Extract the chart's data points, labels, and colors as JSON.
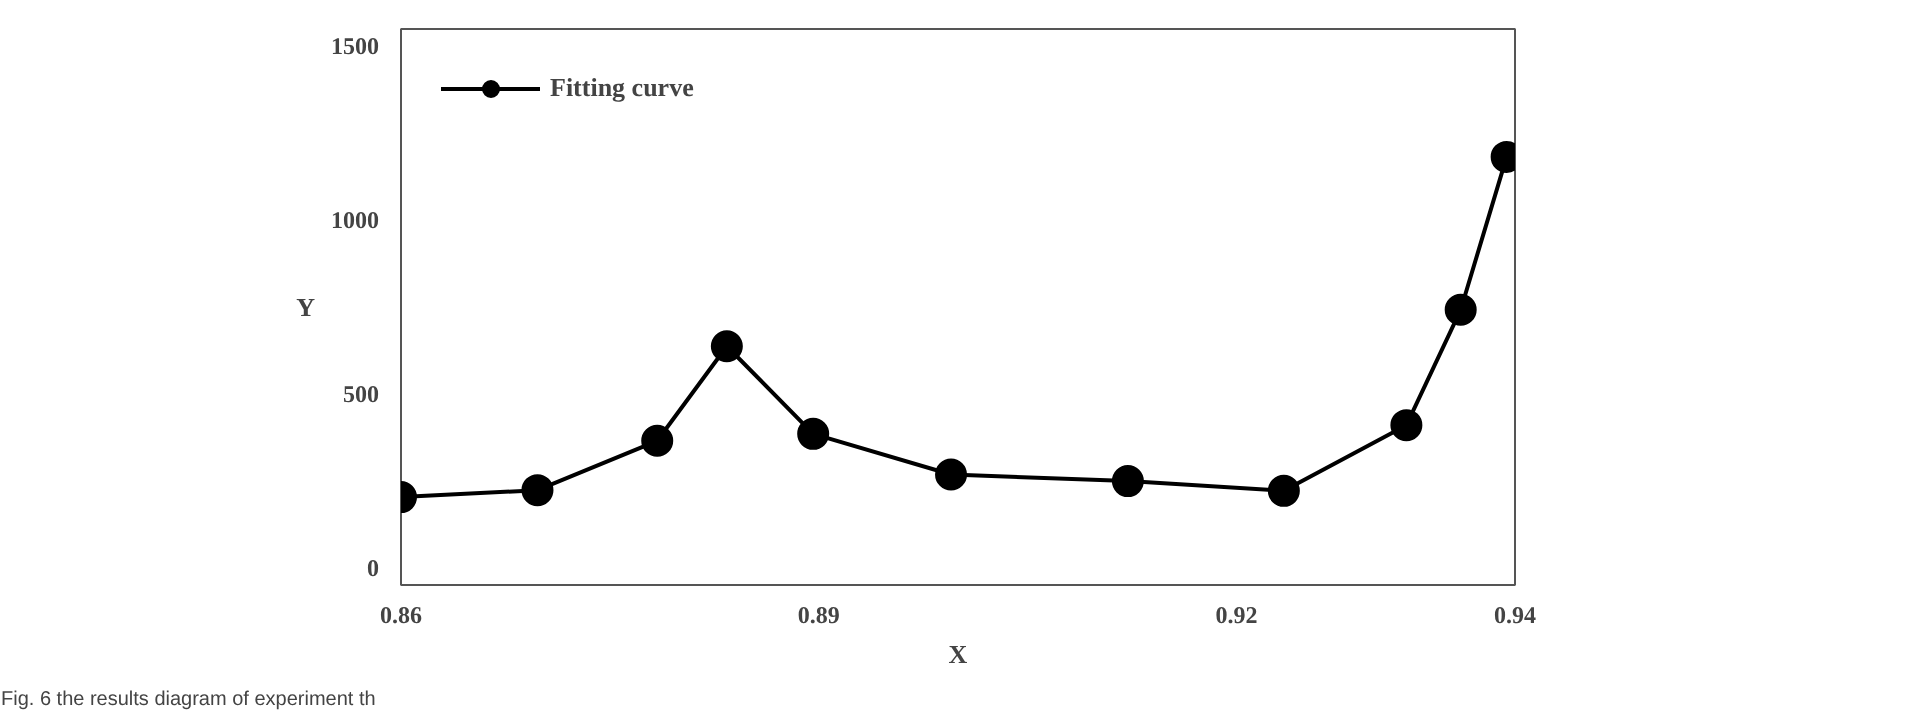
{
  "chart_data": {
    "type": "line",
    "xlabel": "X",
    "ylabel": "Y",
    "x": [
      0.86,
      0.8698,
      0.8784,
      0.8834,
      0.8896,
      0.8995,
      0.9122,
      0.9234,
      0.9322,
      0.9361,
      0.9394
    ],
    "series": [
      {
        "name": "Fitting curve",
        "color": "#000000",
        "values": [
          203,
          223,
          365,
          637,
          385,
          268,
          249,
          221,
          410,
          742,
          1182
        ]
      }
    ],
    "xlim": [
      0.86,
      0.94
    ],
    "xticks": [
      0.86,
      0.89,
      0.92,
      0.94
    ],
    "ylim": [
      -50,
      1550
    ],
    "yticks": [
      0,
      500,
      1000,
      1500
    ],
    "grid": false,
    "legend": "top left",
    "marker": "circle",
    "line_style": "solid",
    "annotations": [
      "Fig. 6 the results diagram of experiment th"
    ]
  }
}
